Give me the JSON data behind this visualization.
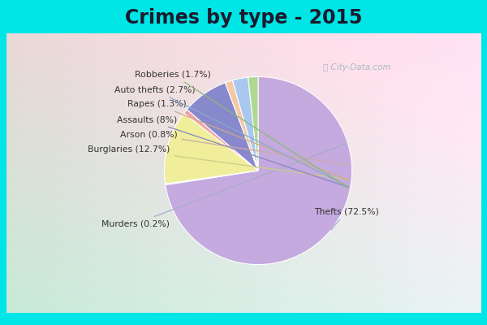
{
  "title": "Crimes by type - 2015",
  "title_fontsize": 17,
  "title_fontweight": "bold",
  "slices": [
    {
      "label": "Thefts",
      "pct": 72.5,
      "color": "#C4AADF"
    },
    {
      "label": "Murders",
      "pct": 0.2,
      "color": "#C4AADF"
    },
    {
      "label": "Burglaries",
      "pct": 12.7,
      "color": "#F0EE9A"
    },
    {
      "label": "Arson",
      "pct": 0.8,
      "color": "#F0A0A8"
    },
    {
      "label": "Assaults",
      "pct": 8.0,
      "color": "#8888CC"
    },
    {
      "label": "Rapes",
      "pct": 1.3,
      "color": "#F5C8A5"
    },
    {
      "label": "Auto thefts",
      "pct": 2.7,
      "color": "#A8C8F0"
    },
    {
      "label": "Robberies",
      "pct": 1.7,
      "color": "#B0D890"
    }
  ],
  "line_colors": {
    "Thefts": "#AAAACC",
    "Murders": "#AAAACC",
    "Burglaries": "#CCCC88",
    "Arson": "#CCAAAA",
    "Assaults": "#8888BB",
    "Rapes": "#CCAA88",
    "Auto thefts": "#88AACC",
    "Robberies": "#88BB77"
  },
  "bg_color": "#00E5E5",
  "bg_inner_tl": "#C8EAD8",
  "bg_inner_br": "#E8F0F8",
  "figure_size": [
    6.0,
    4.0
  ],
  "dpi": 100
}
